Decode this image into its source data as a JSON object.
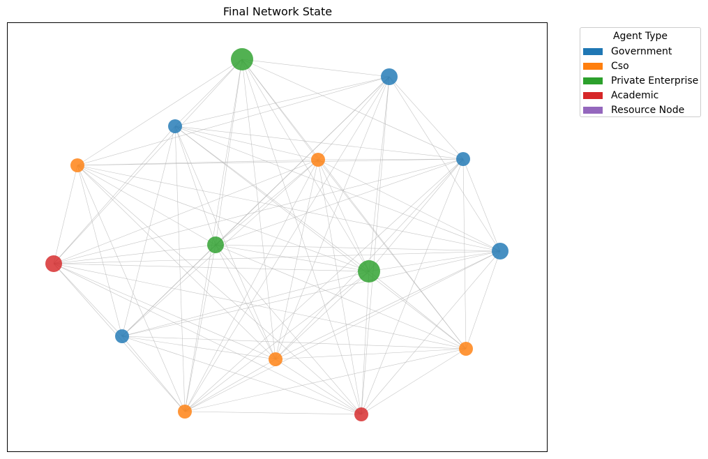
{
  "title": "Final Network State",
  "legend": {
    "title": "Agent Type",
    "items": [
      {
        "label": "Government",
        "color": "#1f77b4"
      },
      {
        "label": "Cso",
        "color": "#ff7f0e"
      },
      {
        "label": "Private Enterprise",
        "color": "#2ca02c"
      },
      {
        "label": "Academic",
        "color": "#d62728"
      },
      {
        "label": "Resource Node",
        "color": "#9467bd"
      }
    ]
  },
  "chart_data": {
    "type": "network",
    "node_count": 15,
    "edge_color": "#b0b0b0",
    "nodes": [
      {
        "id": "G1",
        "type": "Government",
        "size": "medium"
      },
      {
        "id": "G2",
        "type": "Government",
        "size": "small"
      },
      {
        "id": "G3",
        "type": "Government",
        "size": "small"
      },
      {
        "id": "G4",
        "type": "Government",
        "size": "medium"
      },
      {
        "id": "G5",
        "type": "Government",
        "size": "small"
      },
      {
        "id": "C1",
        "type": "Cso",
        "size": "small"
      },
      {
        "id": "C2",
        "type": "Cso",
        "size": "small"
      },
      {
        "id": "C3",
        "type": "Cso",
        "size": "small"
      },
      {
        "id": "C4",
        "type": "Cso",
        "size": "small"
      },
      {
        "id": "C5",
        "type": "Cso",
        "size": "small"
      },
      {
        "id": "P1",
        "type": "Private Enterprise",
        "size": "large"
      },
      {
        "id": "P2",
        "type": "Private Enterprise",
        "size": "medium"
      },
      {
        "id": "P3",
        "type": "Private Enterprise",
        "size": "large"
      },
      {
        "id": "A1",
        "type": "Academic",
        "size": "medium"
      },
      {
        "id": "A2",
        "type": "Academic",
        "size": "small"
      }
    ]
  }
}
